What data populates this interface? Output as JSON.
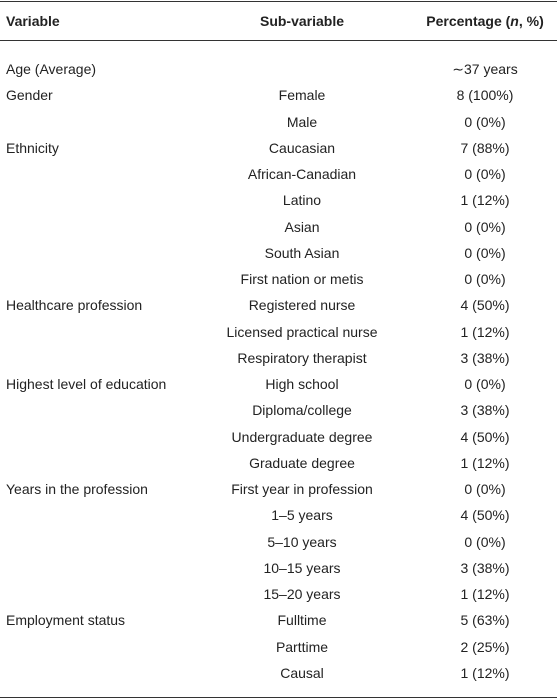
{
  "table": {
    "header": [
      "Variable",
      "Sub-variable",
      {
        "prefix": "Percentage (",
        "italic": "n",
        "suffix": ", %)"
      }
    ],
    "rows": [
      [
        "Age (Average)",
        null,
        "∼37 years"
      ],
      [
        "Gender",
        "Female",
        "8 (100%)"
      ],
      [
        null,
        "Male",
        "0 (0%)"
      ],
      [
        "Ethnicity",
        "Caucasian",
        "7 (88%)"
      ],
      [
        null,
        "African-Canadian",
        "0 (0%)"
      ],
      [
        null,
        "Latino",
        "1 (12%)"
      ],
      [
        null,
        "Asian",
        "0 (0%)"
      ],
      [
        null,
        "South Asian",
        "0 (0%)"
      ],
      [
        null,
        "First nation or metis",
        "0 (0%)"
      ],
      [
        "Healthcare profession",
        "Registered nurse",
        "4 (50%)"
      ],
      [
        null,
        "Licensed practical nurse",
        "1 (12%)"
      ],
      [
        null,
        "Respiratory therapist",
        "3 (38%)"
      ],
      [
        "Highest level of education",
        "High school",
        "0 (0%)"
      ],
      [
        null,
        "Diploma/college",
        "3 (38%)"
      ],
      [
        null,
        "Undergraduate degree",
        "4 (50%)"
      ],
      [
        null,
        "Graduate degree",
        "1 (12%)"
      ],
      [
        "Years in the profession",
        "First year in profession",
        "0 (0%)"
      ],
      [
        null,
        "1–5 years",
        "4 (50%)"
      ],
      [
        null,
        "5–10 years",
        "0 (0%)"
      ],
      [
        null,
        "10–15 years",
        "3 (38%)"
      ],
      [
        null,
        "15–20 years",
        "1 (12%)"
      ],
      [
        "Employment status",
        "Fulltime",
        "5 (63%)"
      ],
      [
        null,
        "Parttime",
        "2 (25%)"
      ],
      [
        null,
        "Causal",
        "1 (12%)"
      ]
    ]
  }
}
